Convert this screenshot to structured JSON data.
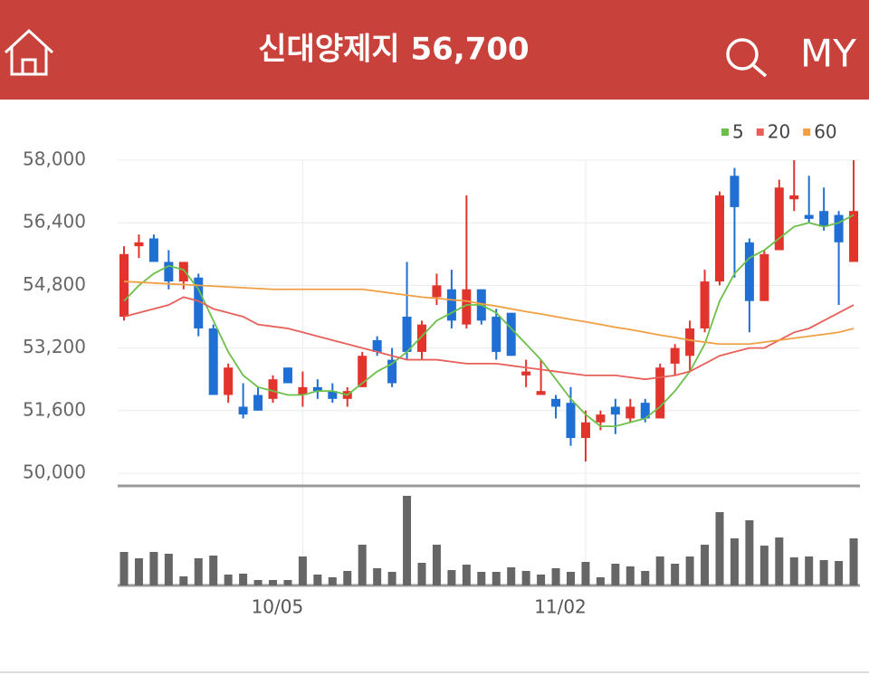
{
  "header": {
    "title": "신대양제지 56,700",
    "my": "MY"
  },
  "chart_data": {
    "type": "candlestick",
    "categories": [
      null,
      null,
      null,
      null,
      null,
      null,
      null,
      null,
      null,
      null,
      null,
      null,
      "10/05",
      null,
      null,
      null,
      null,
      null,
      null,
      null,
      null,
      null,
      null,
      null,
      null,
      null,
      null,
      null,
      null,
      null,
      null,
      "11/02",
      null,
      null,
      null,
      null,
      null,
      null,
      null,
      null,
      null,
      null,
      null,
      null,
      null,
      null,
      null,
      null,
      null,
      null
    ],
    "open": [
      54000,
      55800,
      56000,
      55400,
      54900,
      55000,
      53700,
      52000,
      51700,
      52000,
      51900,
      52700,
      52000,
      52200,
      52100,
      51900,
      52200,
      53400,
      52900,
      54000,
      53100,
      54500,
      54700,
      53800,
      54700,
      54000,
      54100,
      52500,
      52000,
      51900,
      51800,
      50900,
      51300,
      51700,
      51400,
      51800,
      51400,
      52800,
      53000,
      53700,
      54900,
      57600,
      55900,
      54400,
      55700,
      57000,
      56600,
      56700,
      56600,
      55400
    ],
    "high": [
      55800,
      56100,
      56100,
      55700,
      55400,
      55100,
      53800,
      52800,
      52300,
      52200,
      52500,
      52700,
      52600,
      52400,
      52300,
      52200,
      53100,
      53500,
      53200,
      55400,
      53900,
      55100,
      55200,
      57100,
      54700,
      54200,
      54100,
      52900,
      52900,
      52000,
      52200,
      51600,
      51600,
      51900,
      51900,
      51900,
      52800,
      53300,
      53900,
      55200,
      57200,
      57800,
      56000,
      55700,
      57500,
      58000,
      57600,
      57300,
      56700,
      58000
    ],
    "low": [
      53900,
      55500,
      55400,
      54700,
      54700,
      53500,
      52000,
      51800,
      51400,
      51600,
      51800,
      52300,
      51700,
      51900,
      51800,
      51700,
      52200,
      53000,
      52200,
      52900,
      52900,
      54300,
      53700,
      53700,
      53800,
      52900,
      53000,
      52200,
      52000,
      51400,
      50700,
      50300,
      51100,
      51000,
      51300,
      51300,
      51400,
      52500,
      52600,
      53600,
      54800,
      55000,
      53600,
      54400,
      55700,
      56700,
      56400,
      56200,
      54300,
      55400
    ],
    "close": [
      55600,
      55900,
      55400,
      54900,
      55400,
      53700,
      52000,
      52700,
      51500,
      51600,
      52400,
      52300,
      52200,
      52100,
      51900,
      52100,
      53000,
      53100,
      52300,
      53100,
      53800,
      54800,
      53900,
      54700,
      53900,
      53100,
      53000,
      52600,
      52100,
      51700,
      50900,
      51300,
      51500,
      51500,
      51700,
      51400,
      52700,
      53200,
      53700,
      54900,
      57100,
      56800,
      54400,
      55600,
      57300,
      57100,
      56500,
      56300,
      55900,
      56700
    ],
    "up_color": "#e2332d",
    "down_color": "#1f6fd5",
    "ylim": [
      50000,
      58000
    ],
    "yticks": [
      {
        "value": 50000,
        "label": "50,000"
      },
      {
        "value": 51600,
        "label": "51,600"
      },
      {
        "value": 53200,
        "label": "53,200"
      },
      {
        "value": 54800,
        "label": "54,800"
      },
      {
        "value": 56400,
        "label": "56,400"
      },
      {
        "value": 58000,
        "label": "58,000"
      }
    ],
    "grid": true,
    "series": [
      {
        "name": "5",
        "color": "#6cc04a",
        "values": [
          54400,
          54800,
          55100,
          55300,
          55200,
          54700,
          53900,
          53100,
          52500,
          52200,
          52100,
          52000,
          52000,
          52100,
          52100,
          52000,
          52300,
          52600,
          52800,
          53100,
          53500,
          53900,
          54100,
          54300,
          54300,
          54100,
          53700,
          53300,
          52900,
          52400,
          51900,
          51500,
          51200,
          51200,
          51300,
          51400,
          51700,
          52100,
          52600,
          53300,
          54400,
          55100,
          55500,
          55700,
          56000,
          56300,
          56400,
          56300,
          56400,
          56600
        ]
      },
      {
        "name": "20",
        "color": "#e8605a",
        "values": [
          54000,
          54100,
          54200,
          54300,
          54500,
          54400,
          54200,
          54100,
          54000,
          53800,
          53750,
          53700,
          53600,
          53500,
          53400,
          53300,
          53200,
          53100,
          53000,
          52900,
          52900,
          52900,
          52850,
          52800,
          52800,
          52800,
          52750,
          52700,
          52650,
          52600,
          52550,
          52500,
          52500,
          52500,
          52450,
          52400,
          52450,
          52500,
          52600,
          52800,
          53000,
          53100,
          53200,
          53200,
          53400,
          53600,
          53700,
          53900,
          54100,
          54300
        ]
      },
      {
        "name": "60",
        "color": "#f0a044",
        "values": [
          54900,
          54880,
          54860,
          54840,
          54820,
          54800,
          54780,
          54760,
          54740,
          54720,
          54700,
          54700,
          54700,
          54700,
          54700,
          54700,
          54700,
          54650,
          54600,
          54550,
          54500,
          54470,
          54430,
          54400,
          54330,
          54270,
          54200,
          54130,
          54070,
          54000,
          53930,
          53870,
          53800,
          53730,
          53670,
          53600,
          53530,
          53470,
          53400,
          53350,
          53300,
          53300,
          53300,
          53350,
          53400,
          53450,
          53500,
          53550,
          53600,
          53700
        ]
      }
    ],
    "legend": "top-right",
    "volume": {
      "color": "#666666",
      "ylim": [
        0,
        102
      ],
      "values": [
        37,
        30,
        37,
        35,
        10,
        30,
        33,
        12,
        13,
        6,
        6,
        6,
        32,
        12,
        9,
        16,
        45,
        19,
        15,
        99,
        25,
        45,
        17,
        23,
        15,
        15,
        20,
        16,
        12,
        19,
        15,
        26,
        9,
        24,
        21,
        16,
        32,
        24,
        32,
        45,
        81,
        52,
        72,
        44,
        53,
        31,
        32,
        28,
        27,
        52
      ]
    }
  }
}
